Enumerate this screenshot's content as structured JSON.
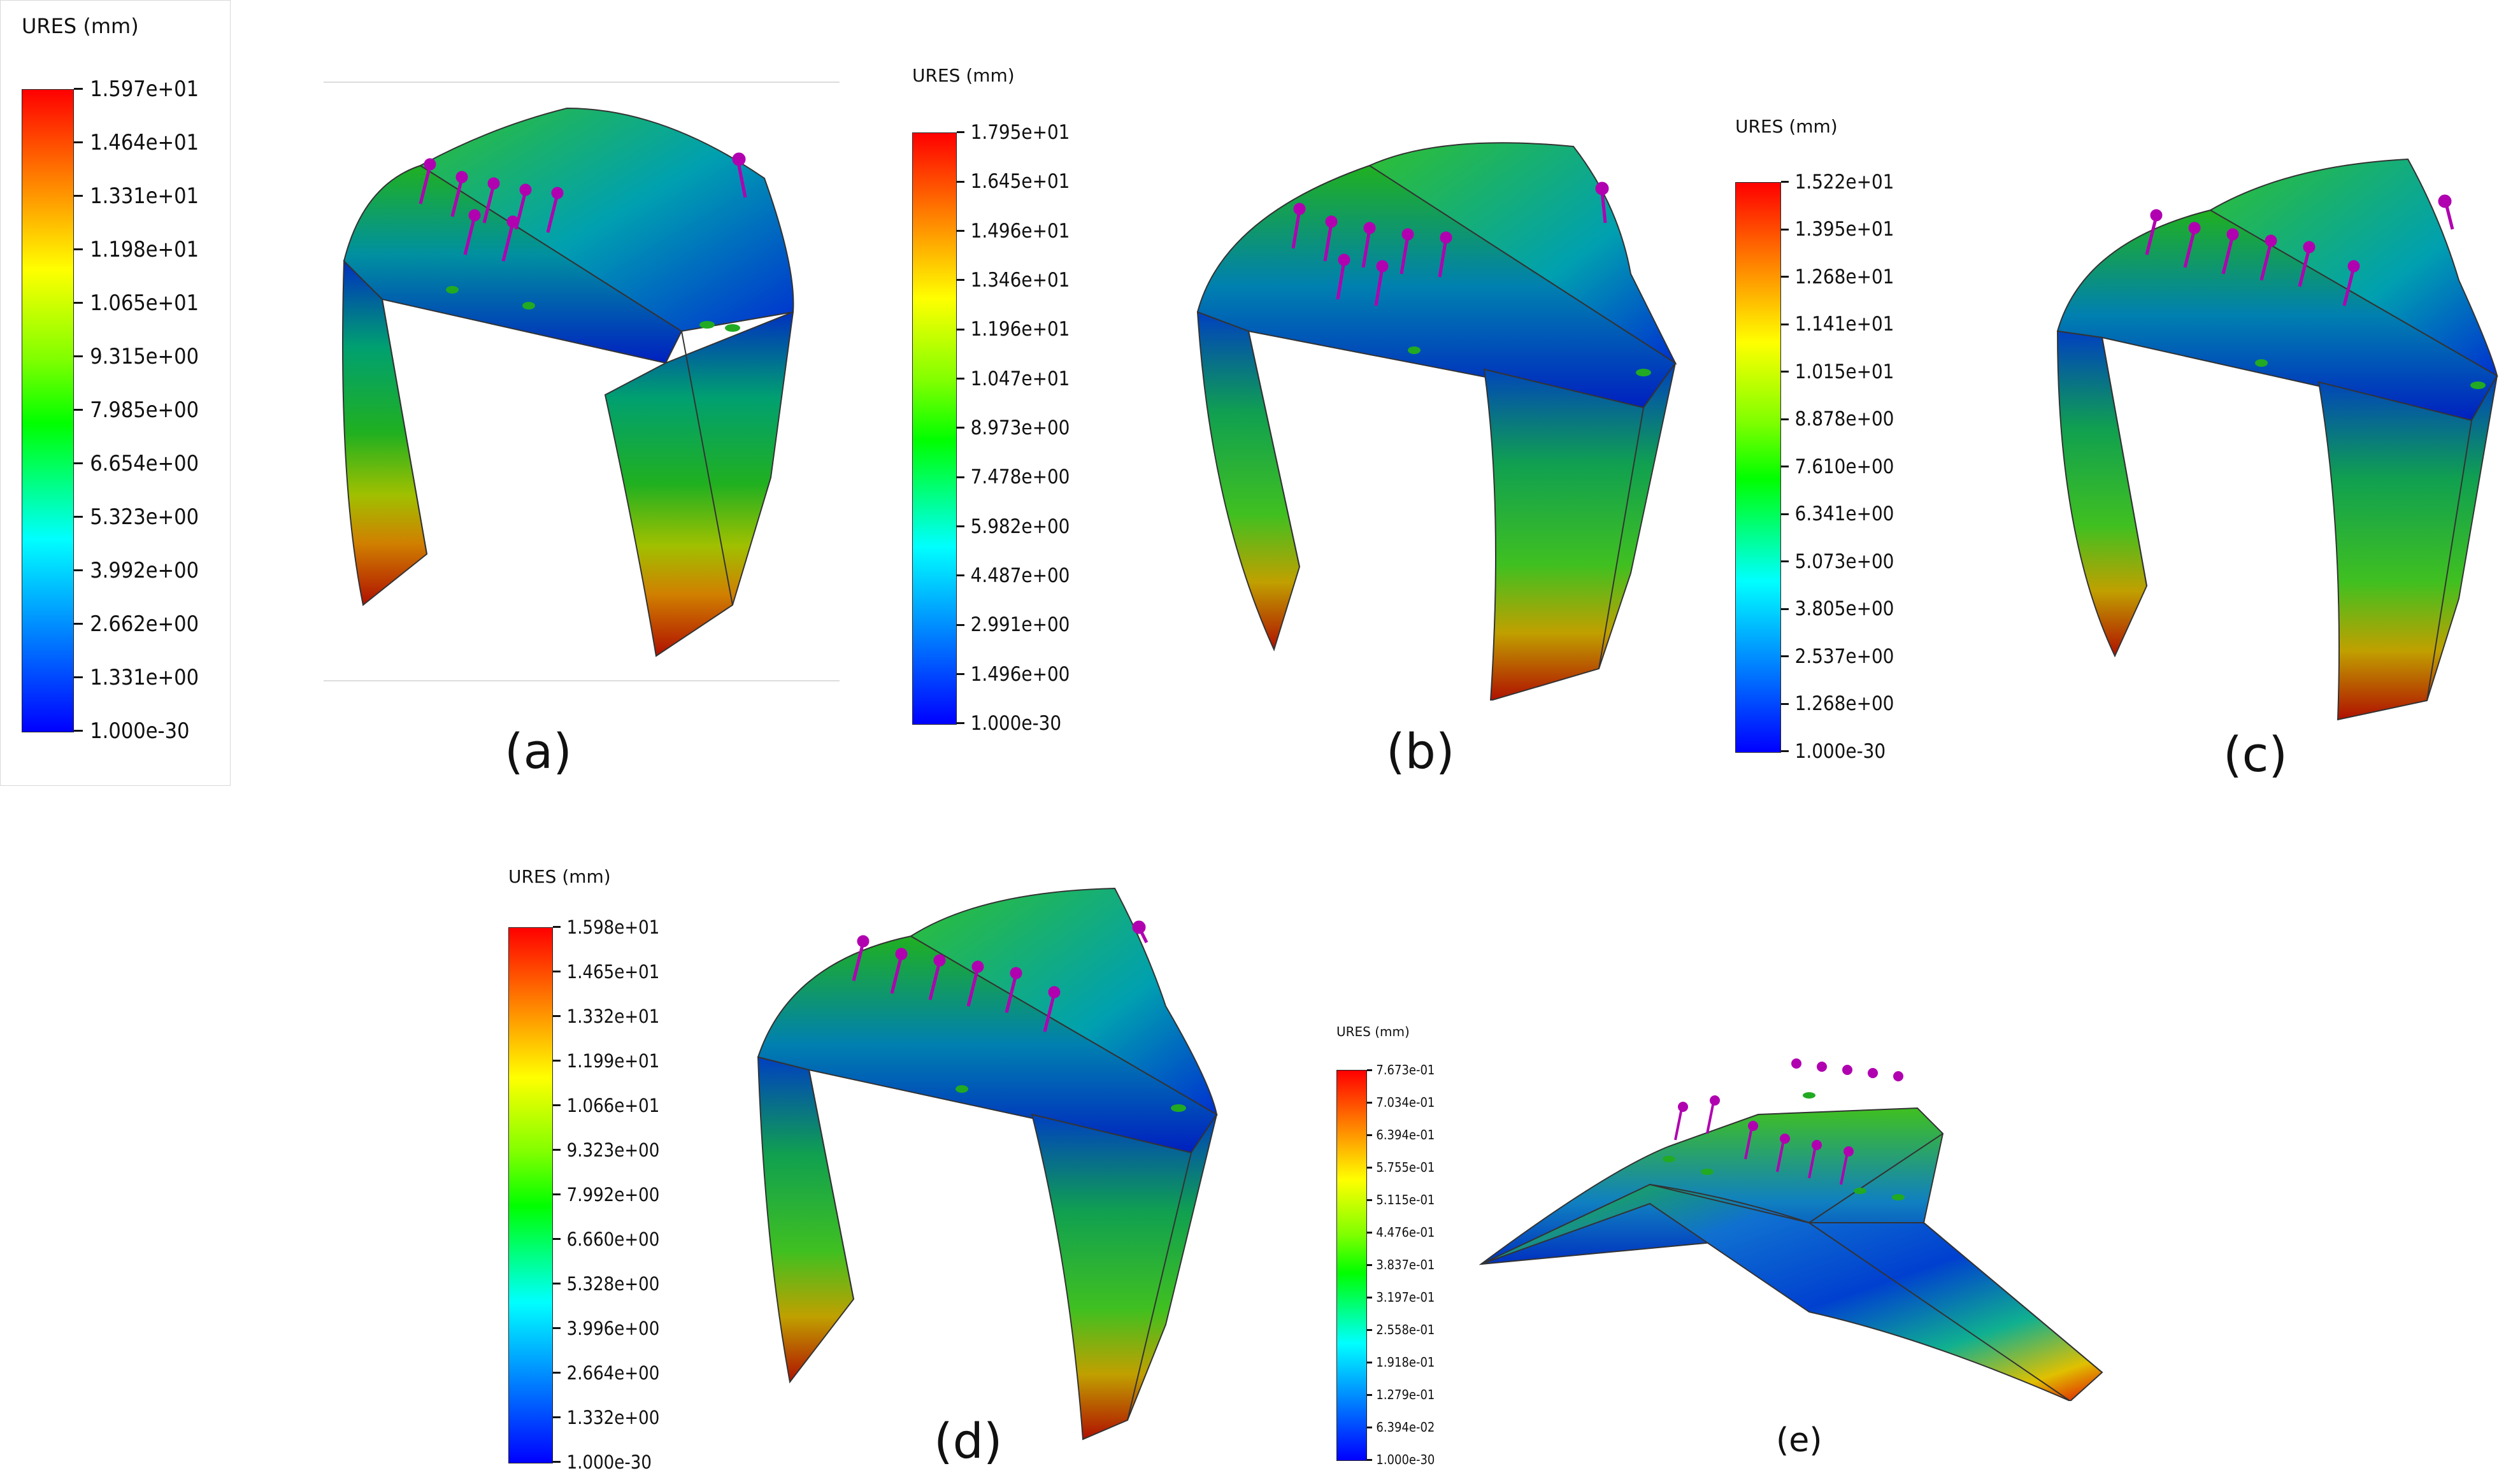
{
  "legend_title": "URES (mm)",
  "panels": [
    {
      "caption": "(a)",
      "legend_ticks": [
        "1.597e+01",
        "1.464e+01",
        "1.331e+01",
        "1.198e+01",
        "1.065e+01",
        "9.315e+00",
        "7.985e+00",
        "6.654e+00",
        "5.323e+00",
        "3.992e+00",
        "2.662e+00",
        "1.331e+00",
        "1.000e-30"
      ]
    },
    {
      "caption": "(b)",
      "legend_ticks": [
        "1.795e+01",
        "1.645e+01",
        "1.496e+01",
        "1.346e+01",
        "1.196e+01",
        "1.047e+01",
        "8.973e+00",
        "7.478e+00",
        "5.982e+00",
        "4.487e+00",
        "2.991e+00",
        "1.496e+00",
        "1.000e-30"
      ]
    },
    {
      "caption": "(c)",
      "legend_ticks": [
        "1.522e+01",
        "1.395e+01",
        "1.268e+01",
        "1.141e+01",
        "1.015e+01",
        "8.878e+00",
        "7.610e+00",
        "6.341e+00",
        "5.073e+00",
        "3.805e+00",
        "2.537e+00",
        "1.268e+00",
        "1.000e-30"
      ]
    },
    {
      "caption": "(d)",
      "legend_ticks": [
        "1.598e+01",
        "1.465e+01",
        "1.332e+01",
        "1.199e+01",
        "1.066e+01",
        "9.323e+00",
        "7.992e+00",
        "6.660e+00",
        "5.328e+00",
        "3.996e+00",
        "2.664e+00",
        "1.332e+00",
        "1.000e-30"
      ]
    },
    {
      "caption": "(e)",
      "legend_ticks": [
        "7.673e-01",
        "7.034e-01",
        "6.394e-01",
        "5.755e-01",
        "5.115e-01",
        "4.476e-01",
        "3.837e-01",
        "3.197e-01",
        "2.558e-01",
        "1.918e-01",
        "1.279e-01",
        "6.394e-02",
        "1.000e-30"
      ]
    }
  ],
  "colors": {
    "max": "#ff0000",
    "high": "#ff8000",
    "mid_high": "#ffff00",
    "mid": "#00ff00",
    "mid_low": "#00ffff",
    "low": "#0080ff",
    "min": "#0000ff",
    "load_arrow": "#b000b0",
    "fixture": "#22aa22"
  }
}
